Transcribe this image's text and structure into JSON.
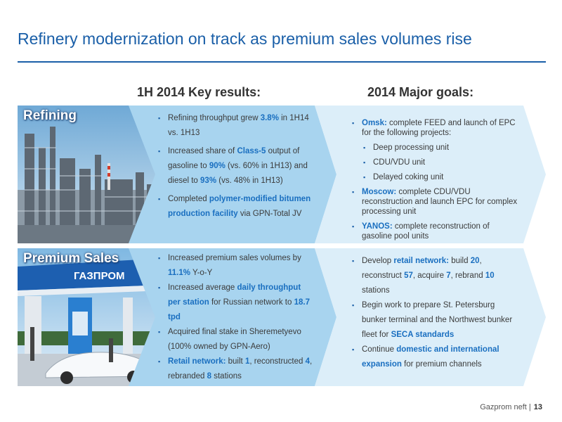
{
  "title": "Refinery modernization on track as premium sales volumes rise",
  "headers": {
    "left": "1H  2014 Key results:",
    "right": "2014 Major goals:"
  },
  "rows": [
    {
      "label": "Refining",
      "results": [
        {
          "parts": [
            {
              "t": "Refining throughput grew "
            },
            {
              "t": "3.8%",
              "h": true
            },
            {
              "t": " in 1H14 vs. 1H13"
            }
          ]
        },
        {
          "parts": [
            {
              "t": "Increased share of "
            },
            {
              "t": "Class-5",
              "h": true
            },
            {
              "t": " output of gasoline to "
            },
            {
              "t": "90%",
              "h": true
            },
            {
              "t": " (vs. 60% in 1H13) and diesel to "
            },
            {
              "t": "93%",
              "h": true
            },
            {
              "t": " (vs. 48% in 1H13)"
            }
          ]
        },
        {
          "parts": [
            {
              "t": "Completed "
            },
            {
              "t": "polymer-modified bitumen production facility",
              "h": true
            },
            {
              "t": " via GPN-Total JV"
            }
          ]
        }
      ],
      "goals": [
        {
          "parts": [
            {
              "t": "Omsk:",
              "h": true
            },
            {
              "t": " complete FEED and launch of EPC for the following projects:"
            }
          ]
        },
        {
          "sub": true,
          "parts": [
            {
              "t": "Deep processing unit"
            }
          ]
        },
        {
          "sub": true,
          "parts": [
            {
              "t": "CDU/VDU unit"
            }
          ]
        },
        {
          "sub": true,
          "parts": [
            {
              "t": "Delayed coking unit"
            }
          ]
        },
        {
          "parts": [
            {
              "t": "Moscow:",
              "h": true
            },
            {
              "t": " complete CDU/VDU reconstruction and launch EPC for complex processing unit"
            }
          ]
        },
        {
          "parts": [
            {
              "t": "YANOS:",
              "h": true
            },
            {
              "t": " complete reconstruction of gasoline pool units"
            }
          ]
        }
      ]
    },
    {
      "label": "Premium Sales",
      "results": [
        {
          "parts": [
            {
              "t": "Increased premium sales volumes by "
            },
            {
              "t": "11.1%",
              "h": true
            },
            {
              "t": " Y-o-Y"
            }
          ]
        },
        {
          "parts": [
            {
              "t": "Increased average "
            },
            {
              "t": "daily throughput per station",
              "h": true
            },
            {
              "t": " for Russian network to "
            },
            {
              "t": "18.7 tpd",
              "h": true
            }
          ]
        },
        {
          "parts": [
            {
              "t": "Acquired final stake in Sheremetyevo (100% owned by GPN-Aero)"
            }
          ]
        },
        {
          "parts": [
            {
              "t": "Retail network:",
              "h": true
            },
            {
              "t": " built "
            },
            {
              "t": "1",
              "h": true
            },
            {
              "t": ", reconstructed "
            },
            {
              "t": "4",
              "h": true
            },
            {
              "t": ", rebranded "
            },
            {
              "t": "8",
              "h": true
            },
            {
              "t": " stations"
            }
          ]
        }
      ],
      "goals": [
        {
          "parts": [
            {
              "t": "Develop "
            },
            {
              "t": "retail network:",
              "h": true
            },
            {
              "t": " build "
            },
            {
              "t": "20",
              "h": true
            },
            {
              "t": ", reconstruct "
            },
            {
              "t": "57",
              "h": true
            },
            {
              "t": ", acquire "
            },
            {
              "t": "7",
              "h": true
            },
            {
              "t": ", rebrand "
            },
            {
              "t": "10",
              "h": true
            },
            {
              "t": " stations"
            }
          ]
        },
        {
          "parts": [
            {
              "t": "Begin work to prepare St. Petersburg bunker terminal and the Northwest bunker fleet for "
            },
            {
              "t": "SECA standards",
              "h": true
            }
          ]
        },
        {
          "parts": [
            {
              "t": "Continue "
            },
            {
              "t": "domestic and international expansion",
              "h": true
            },
            {
              "t": " for premium channels"
            }
          ]
        }
      ]
    }
  ],
  "station_sign": "ГАЗПРОМ",
  "footer": {
    "company": "Gazprom neft |",
    "page": "13"
  },
  "colors": {
    "accent": "#1a5fa8",
    "highlight": "#1a6fc0",
    "panel_dark": "#a8d4ef",
    "panel_light": "#dceef9"
  }
}
